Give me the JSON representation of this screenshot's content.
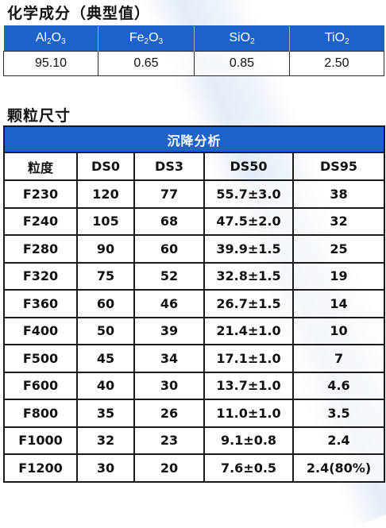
{
  "chemical": {
    "title": "化学成分（典型值）",
    "columns": [
      {
        "base": "Al",
        "sub1": "2",
        "mid": "O",
        "sub2": "3"
      },
      {
        "base": "Fe",
        "sub1": "2",
        "mid": "O",
        "sub2": "3"
      },
      {
        "base": "Si",
        "sub1": "",
        "mid": "O",
        "sub2": "2"
      },
      {
        "base": "Ti",
        "sub1": "",
        "mid": "O",
        "sub2": "2"
      }
    ],
    "values": [
      "95.10",
      "0.65",
      "0.85",
      "2.50"
    ]
  },
  "grain": {
    "title": "颗粒尺寸",
    "caption": "沉降分析",
    "headers": [
      "粒度",
      "DS0",
      "DS3",
      "DS50",
      "DS95"
    ],
    "rows": [
      [
        "F230",
        "120",
        "77",
        "55.7±3.0",
        "38"
      ],
      [
        "F240",
        "105",
        "68",
        "47.5±2.0",
        "32"
      ],
      [
        "F280",
        "90",
        "60",
        "39.9±1.5",
        "25"
      ],
      [
        "F320",
        "75",
        "52",
        "32.8±1.5",
        "19"
      ],
      [
        "F360",
        "60",
        "46",
        "26.7±1.5",
        "14"
      ],
      [
        "F400",
        "50",
        "39",
        "21.4±1.0",
        "10"
      ],
      [
        "F500",
        "45",
        "34",
        "17.1±1.0",
        "7"
      ],
      [
        "F600",
        "40",
        "30",
        "13.7±1.0",
        "4.6"
      ],
      [
        "F800",
        "35",
        "26",
        "11.0±1.0",
        "3.5"
      ],
      [
        "F1000",
        "32",
        "23",
        "9.1±0.8",
        "2.4"
      ],
      [
        "F1200",
        "30",
        "20",
        "7.6±0.5",
        "2.4(80%)"
      ]
    ]
  }
}
